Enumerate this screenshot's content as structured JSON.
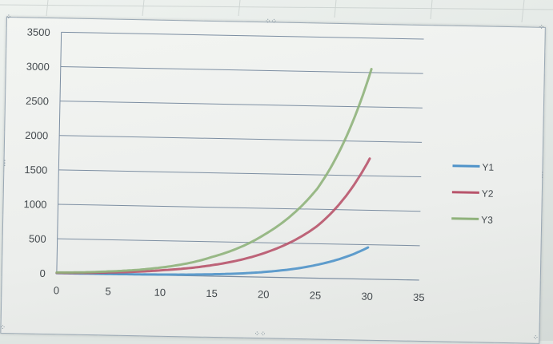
{
  "chart_data": {
    "type": "line",
    "title": "",
    "xlabel": "",
    "ylabel": "",
    "xlim": [
      0,
      35
    ],
    "ylim": [
      0,
      3500
    ],
    "x_ticks": [
      "0",
      "5",
      "10",
      "15",
      "20",
      "25",
      "30",
      "35"
    ],
    "y_ticks": [
      "0",
      "500",
      "1000",
      "1500",
      "2000",
      "2500",
      "3000",
      "3500"
    ],
    "grid": "horizontal",
    "legend_position": "right",
    "series": [
      {
        "name": "Y1",
        "color": "#4f93c9",
        "x": [
          0,
          5,
          10,
          15,
          20,
          25,
          30
        ],
        "y": [
          1,
          3,
          9,
          27,
          75,
          190,
          460
        ]
      },
      {
        "name": "Y2",
        "color": "#b8546b",
        "x": [
          0,
          5,
          10,
          15,
          20,
          25,
          30
        ],
        "y": [
          5,
          25,
          70,
          160,
          350,
          750,
          1750
        ]
      },
      {
        "name": "Y3",
        "color": "#8fb27b",
        "x": [
          0,
          5,
          10,
          15,
          20,
          25,
          30
        ],
        "y": [
          10,
          40,
          110,
          280,
          620,
          1300,
          3050
        ]
      }
    ]
  }
}
